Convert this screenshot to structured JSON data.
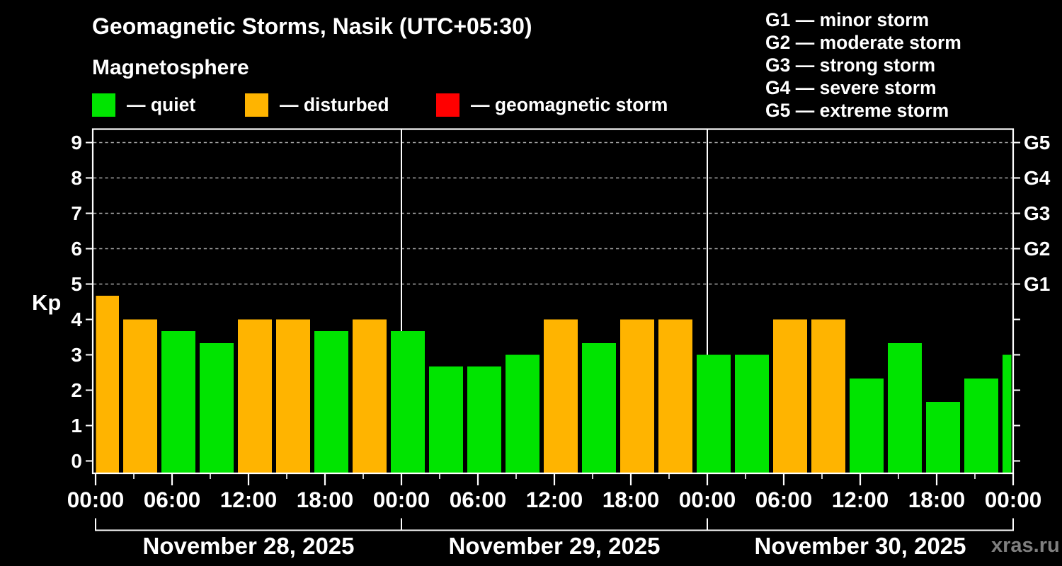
{
  "header": {
    "title": "Geomagnetic Storms, Nasik (UTC+05:30)",
    "subtitle": "Magnetosphere"
  },
  "legend": {
    "items": [
      {
        "label": "quiet",
        "color": "#00e400",
        "x": 0
      },
      {
        "label": "disturbed",
        "color": "#ffb400",
        "x": 216
      },
      {
        "label": "geomagnetic storm",
        "color": "#ff0000",
        "x": 486
      }
    ],
    "separator": "—"
  },
  "storm_scale_legend": [
    {
      "code": "G1",
      "description": "minor storm"
    },
    {
      "code": "G2",
      "description": "moderate storm"
    },
    {
      "code": "G3",
      "description": "strong storm"
    },
    {
      "code": "G4",
      "description": "severe storm"
    },
    {
      "code": "G5",
      "description": "extreme storm"
    }
  ],
  "watermark": "xras.ru",
  "chart_data": {
    "type": "bar",
    "title": "Geomagnetic Storms, Nasik (UTC+05:30)",
    "xlabel": "",
    "ylabel": "Kp",
    "ylim": [
      0,
      9
    ],
    "y_ticks": [
      0,
      1,
      2,
      3,
      4,
      5,
      6,
      7,
      8,
      9
    ],
    "grid_levels": [
      5,
      6,
      7,
      8,
      9
    ],
    "right_axis_labels": [
      {
        "label": "G1",
        "kp": 5
      },
      {
        "label": "G2",
        "kp": 6
      },
      {
        "label": "G3",
        "kp": 7
      },
      {
        "label": "G4",
        "kp": 8
      },
      {
        "label": "G5",
        "kp": 9
      }
    ],
    "x_tick_labels": [
      "00:00",
      "06:00",
      "12:00",
      "18:00",
      "00:00",
      "06:00",
      "12:00",
      "18:00",
      "00:00",
      "06:00",
      "12:00",
      "18:00",
      "00:00"
    ],
    "x_tick_hours": [
      0,
      6,
      12,
      18,
      24,
      30,
      36,
      42,
      48,
      54,
      60,
      66,
      72
    ],
    "days": [
      {
        "label": "November 28, 2025",
        "start_hour": 0,
        "end_hour": 24
      },
      {
        "label": "November 29, 2025",
        "start_hour": 24,
        "end_hour": 48
      },
      {
        "label": "November 30, 2025",
        "start_hour": 48,
        "end_hour": 72
      }
    ],
    "interval_hours": 3,
    "series": [
      {
        "name": "Kp index",
        "values": [
          {
            "kp": 4.67,
            "state": "disturbed"
          },
          {
            "kp": 4.0,
            "state": "disturbed"
          },
          {
            "kp": 3.67,
            "state": "quiet"
          },
          {
            "kp": 3.33,
            "state": "quiet"
          },
          {
            "kp": 4.0,
            "state": "disturbed"
          },
          {
            "kp": 4.0,
            "state": "disturbed"
          },
          {
            "kp": 3.67,
            "state": "quiet"
          },
          {
            "kp": 4.0,
            "state": "disturbed"
          },
          {
            "kp": 3.67,
            "state": "quiet"
          },
          {
            "kp": 2.67,
            "state": "quiet"
          },
          {
            "kp": 2.67,
            "state": "quiet"
          },
          {
            "kp": 3.0,
            "state": "quiet"
          },
          {
            "kp": 4.0,
            "state": "disturbed"
          },
          {
            "kp": 3.33,
            "state": "quiet"
          },
          {
            "kp": 4.0,
            "state": "disturbed"
          },
          {
            "kp": 4.0,
            "state": "disturbed"
          },
          {
            "kp": 3.0,
            "state": "quiet"
          },
          {
            "kp": 3.0,
            "state": "quiet"
          },
          {
            "kp": 4.0,
            "state": "disturbed"
          },
          {
            "kp": 4.0,
            "state": "disturbed"
          },
          {
            "kp": 2.33,
            "state": "quiet"
          },
          {
            "kp": 3.33,
            "state": "quiet"
          },
          {
            "kp": 1.67,
            "state": "quiet"
          },
          {
            "kp": 2.33,
            "state": "quiet"
          },
          {
            "kp": 3.0,
            "state": "quiet"
          }
        ]
      }
    ],
    "state_colors": {
      "quiet": "#00e400",
      "disturbed": "#ffb400",
      "storm": "#ff0000"
    },
    "axis_color": "#ffffff",
    "grid_color": "#aaaaaa",
    "background_color": "#000000",
    "legend_position": "top-left",
    "grid": true
  }
}
